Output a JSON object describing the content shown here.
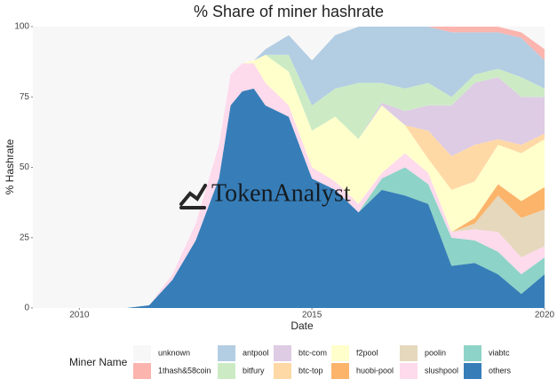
{
  "chart_data": {
    "type": "stacked-area",
    "title": "% Share of miner hashrate",
    "x_label": "Date",
    "y_label": "% Hashrate",
    "legend_title": "Miner Name",
    "watermark": "TokenAnalyst",
    "x": [
      2009,
      2010,
      2011,
      2011.5,
      2012,
      2012.5,
      2013,
      2013.25,
      2013.5,
      2013.75,
      2014,
      2014.5,
      2015,
      2015.5,
      2016,
      2016.5,
      2017,
      2017.5,
      2018,
      2018.5,
      2019,
      2019.5,
      2020
    ],
    "xlim": [
      2009,
      2020
    ],
    "xticks": [
      2010,
      2015,
      2020
    ],
    "ylim": [
      0,
      100
    ],
    "yticks": [
      0,
      25,
      50,
      75,
      100
    ],
    "series": [
      {
        "name": "unknown",
        "color": "#f7f7f7",
        "values": [
          100,
          100,
          100,
          99,
          88,
          70,
          42,
          17,
          13,
          12,
          8,
          3,
          12,
          3,
          0,
          0,
          0,
          0,
          0,
          0,
          0,
          2,
          8
        ]
      },
      {
        "name": "1thash&58coin",
        "color": "#fbb4ae",
        "values": [
          0,
          0,
          0,
          0,
          0,
          0,
          0,
          0,
          0,
          0,
          0,
          0,
          0,
          0,
          0,
          0,
          0,
          0,
          2,
          2,
          2,
          2,
          4
        ]
      },
      {
        "name": "antpool",
        "color": "#b3cde3",
        "values": [
          0,
          0,
          0,
          0,
          0,
          0,
          0,
          0,
          0,
          0,
          2,
          7,
          16,
          19,
          20,
          20,
          22,
          20,
          23,
          15,
          13,
          14,
          10
        ]
      },
      {
        "name": "bitfury",
        "color": "#ccebc5",
        "values": [
          0,
          0,
          0,
          0,
          0,
          0,
          0,
          0,
          0,
          0,
          0,
          6,
          9,
          10,
          20,
          7,
          8,
          8,
          3,
          3,
          3,
          7,
          3
        ]
      },
      {
        "name": "btc-com",
        "color": "#decbe4",
        "values": [
          0,
          0,
          0,
          0,
          0,
          0,
          0,
          0,
          0,
          0,
          0,
          0,
          0,
          0,
          0,
          1,
          5,
          9,
          18,
          22,
          22,
          17,
          13
        ]
      },
      {
        "name": "btc-top",
        "color": "#fed9a6",
        "values": [
          0,
          0,
          0,
          0,
          0,
          0,
          0,
          0,
          0,
          0,
          0,
          0,
          0,
          0,
          0,
          0,
          0,
          10,
          12,
          13,
          2,
          3,
          2
        ]
      },
      {
        "name": "f2pool",
        "color": "#ffffcc",
        "values": [
          0,
          0,
          0,
          0,
          0,
          0,
          0,
          0,
          0,
          1,
          10,
          12,
          13,
          23,
          23,
          24,
          10,
          5,
          15,
          13,
          14,
          17,
          17
        ]
      },
      {
        "name": "huobi-pool",
        "color": "#fbb46a",
        "values": [
          0,
          0,
          0,
          0,
          0,
          0,
          0,
          0,
          0,
          0,
          0,
          0,
          0,
          0,
          0,
          0,
          0,
          0,
          0,
          2,
          4,
          6,
          8
        ]
      },
      {
        "name": "poolin",
        "color": "#e5d8bd",
        "values": [
          0,
          0,
          0,
          0,
          0,
          0,
          0,
          0,
          0,
          0,
          0,
          0,
          0,
          0,
          0,
          0,
          0,
          0,
          0,
          2,
          13,
          14,
          13
        ]
      },
      {
        "name": "slushpool",
        "color": "#fddaec",
        "values": [
          0,
          0,
          0,
          0,
          2,
          6,
          12,
          11,
          10,
          9,
          8,
          4,
          4,
          3,
          3,
          2,
          5,
          4,
          2,
          4,
          7,
          6,
          4
        ]
      },
      {
        "name": "viabtc",
        "color": "#8dd3c7",
        "values": [
          0,
          0,
          0,
          0,
          0,
          0,
          0,
          0,
          0,
          0,
          0,
          0,
          0,
          0,
          0,
          4,
          10,
          7,
          10,
          8,
          8,
          7,
          6
        ]
      },
      {
        "name": "others",
        "color": "#377eb8",
        "values": [
          0,
          0,
          0,
          1,
          10,
          24,
          46,
          72,
          77,
          78,
          72,
          68,
          46,
          42,
          34,
          42,
          40,
          37,
          15,
          16,
          12,
          5,
          12
        ]
      }
    ]
  }
}
